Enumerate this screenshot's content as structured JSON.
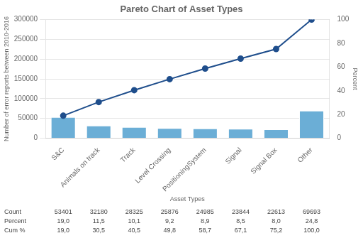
{
  "chart_data": {
    "type": "bar",
    "title": "Pareto Chart of Asset Types",
    "categories": [
      "S&C",
      "Animals on track",
      "Track",
      "Level Crossing",
      "PositioningSystem",
      "Signal",
      "Signal Box",
      "Other"
    ],
    "series": [
      {
        "type": "bar",
        "color": "#6baed6",
        "values": [
          53401,
          32180,
          28325,
          25876,
          24985,
          23844,
          22613,
          69693
        ]
      },
      {
        "type": "line",
        "color": "#1f4e8c",
        "marker": "circle",
        "axis": "y2",
        "values": [
          19.0,
          30.5,
          40.5,
          49.8,
          58.7,
          67.1,
          75.2,
          100.0
        ]
      }
    ],
    "xlabel": "Asset Types",
    "ylabel": "Number of error reports between 2010-2016",
    "y2label": "Percent",
    "ylim": [
      0,
      300000
    ],
    "yticks": [
      0,
      50000,
      100000,
      150000,
      200000,
      250000,
      300000
    ],
    "y2lim": [
      0,
      100
    ],
    "y2ticks": [
      0,
      20,
      40,
      60,
      80,
      100
    ],
    "grid": true,
    "table": {
      "rows": [
        "Count",
        "Percent",
        "Cum %"
      ],
      "cells": [
        [
          "53401",
          "32180",
          "28325",
          "25876",
          "24985",
          "23844",
          "22613",
          "69693"
        ],
        [
          "19,0",
          "11,5",
          "10,1",
          "9,2",
          "8,9",
          "8,5",
          "8,0",
          "24,8"
        ],
        [
          "19,0",
          "30,5",
          "40,5",
          "49,8",
          "58,7",
          "67,1",
          "75,2",
          "100,0"
        ]
      ]
    }
  }
}
